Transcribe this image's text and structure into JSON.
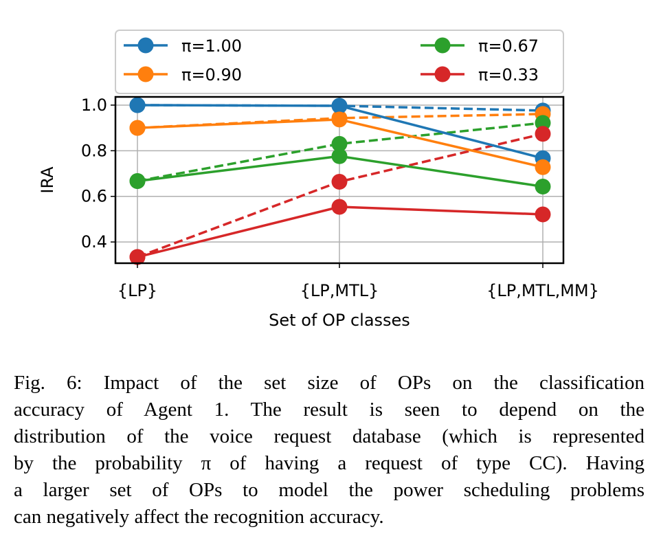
{
  "chart_data": {
    "type": "line",
    "title": "",
    "xlabel": "Set of OP classes",
    "ylabel": "IRA",
    "categories": [
      "{LP}",
      "{LP,MTL}",
      "{LP,MTL,MM}"
    ],
    "ylim": [
      0.307,
      1.036
    ],
    "yticks": [
      "1.0",
      "0.8",
      "0.6",
      "0.4"
    ],
    "ytick_values": [
      1.0,
      0.8,
      0.6,
      0.4
    ],
    "grid": true,
    "legend_placement": "top (above plot)",
    "legend": [
      "π=1.00",
      "π=0.90",
      "π=0.67",
      "π=0.33"
    ],
    "series": [
      {
        "name": "π=1.00",
        "color": "#1f77b4",
        "style": "solid",
        "values": [
          1.0,
          0.997,
          0.767
        ]
      },
      {
        "name": "π=0.90",
        "color": "#ff7f0e",
        "style": "solid",
        "values": [
          0.9,
          0.937,
          0.728
        ]
      },
      {
        "name": "π=0.67",
        "color": "#2ca02c",
        "style": "solid",
        "values": [
          0.667,
          0.776,
          0.643
        ]
      },
      {
        "name": "π=0.33",
        "color": "#d62728",
        "style": "solid",
        "values": [
          0.334,
          0.554,
          0.521
        ]
      },
      {
        "color": "#1f77b4",
        "style": "dashed",
        "values": [
          1.0,
          0.997,
          0.976
        ]
      },
      {
        "color": "#ff7f0e",
        "style": "dashed",
        "values": [
          0.9,
          0.943,
          0.961
        ]
      },
      {
        "color": "#2ca02c",
        "style": "dashed",
        "values": [
          0.667,
          0.83,
          0.922
        ]
      },
      {
        "color": "#d62728",
        "style": "dashed",
        "values": [
          0.334,
          0.664,
          0.874
        ]
      }
    ]
  },
  "caption": [
    "Fig. 6: Impact of the set size of OPs on the classification",
    "accuracy of Agent 1. The result is seen to depend on the",
    "distribution of the voice request database (which is represented",
    "by the probability π of having a request of type CC). Having",
    "a larger set of OPs to model the power scheduling problems",
    "can negatively affect the recognition accuracy."
  ]
}
